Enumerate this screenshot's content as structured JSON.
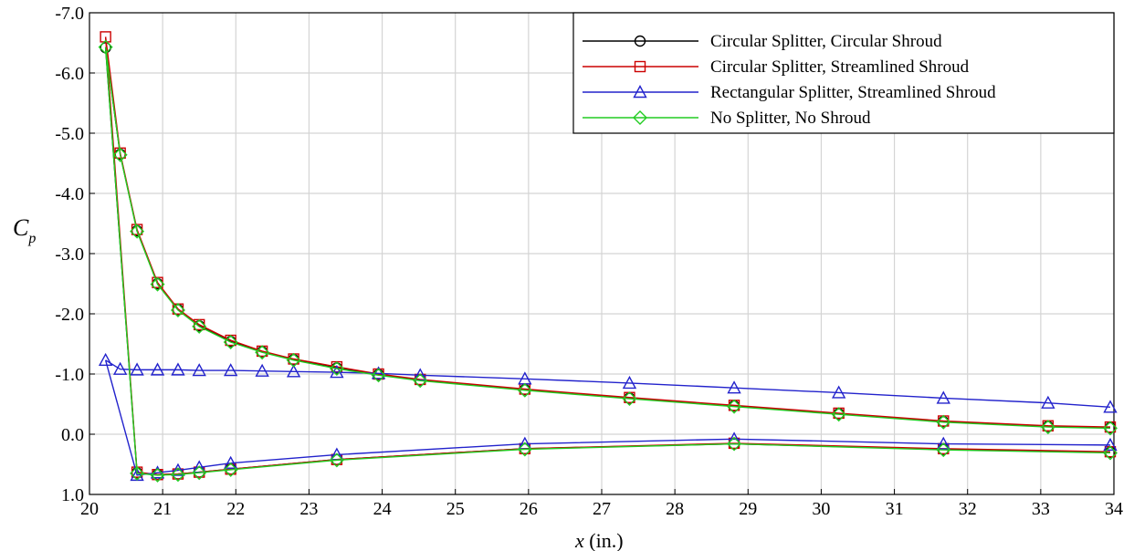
{
  "chart_data": {
    "type": "line",
    "title": "",
    "xlabel": {
      "var": "x",
      "unit": " (in.)"
    },
    "ylabel": {
      "main": "C",
      "sub": "p"
    },
    "xlim": [
      20,
      34
    ],
    "ylim": [
      1.0,
      -7.0
    ],
    "y_inverted": true,
    "grid": true,
    "legend_position": "top-right",
    "x_ticks": [
      20,
      21,
      22,
      23,
      24,
      25,
      26,
      27,
      28,
      29,
      30,
      31,
      32,
      33,
      34
    ],
    "x_tick_labels": [
      "20",
      "21",
      "22",
      "23",
      "24",
      "25",
      "26",
      "27",
      "28",
      "29",
      "30",
      "31",
      "32",
      "33",
      "34"
    ],
    "y_ticks": [
      -7,
      -6,
      -5,
      -4,
      -3,
      -2,
      -1,
      0,
      1
    ],
    "y_tick_labels": [
      "-7.0",
      "-6.0",
      "-5.0",
      "-4.0",
      "-3.0",
      "-2.0",
      "-1.0",
      "0.0",
      "1.0"
    ],
    "series": [
      {
        "name": "Circular Splitter, Circular Shroud",
        "color": "#000000",
        "marker": "circle",
        "upper": {
          "x": [
            20.22,
            20.42,
            20.65,
            20.93,
            21.21,
            21.5,
            21.93,
            22.36,
            22.79,
            23.38,
            23.95,
            24.52,
            25.95,
            27.38,
            28.81,
            30.24,
            31.67,
            33.1,
            33.95
          ],
          "y": [
            -6.42,
            -4.65,
            -3.38,
            -2.5,
            -2.07,
            -1.8,
            -1.54,
            -1.37,
            -1.24,
            -1.1,
            -0.99,
            -0.9,
            -0.74,
            -0.6,
            -0.47,
            -0.34,
            -0.21,
            -0.13,
            -0.11
          ]
        },
        "lower": {
          "x": [
            20.22,
            20.65,
            20.93,
            21.21,
            21.5,
            21.93,
            23.38,
            25.95,
            28.81,
            31.67,
            33.95
          ],
          "y": [
            -6.42,
            0.64,
            0.67,
            0.66,
            0.63,
            0.58,
            0.42,
            0.24,
            0.16,
            0.25,
            0.3
          ]
        }
      },
      {
        "name": "Circular Splitter, Streamlined Shroud",
        "color": "#cc0000",
        "marker": "square",
        "upper": {
          "x": [
            20.22,
            20.42,
            20.65,
            20.93,
            21.21,
            21.5,
            21.93,
            22.36,
            22.79,
            23.38,
            23.95,
            24.52,
            25.95,
            27.38,
            28.81,
            30.24,
            31.67,
            33.1,
            33.95
          ],
          "y": [
            -6.6,
            -4.67,
            -3.4,
            -2.52,
            -2.08,
            -1.82,
            -1.56,
            -1.38,
            -1.25,
            -1.12,
            -1.0,
            -0.91,
            -0.75,
            -0.61,
            -0.48,
            -0.35,
            -0.22,
            -0.14,
            -0.12
          ]
        },
        "lower": {
          "x": [
            20.22,
            20.65,
            20.93,
            21.21,
            21.5,
            21.93,
            23.38,
            25.95,
            28.81,
            31.67,
            33.95
          ],
          "y": [
            -6.6,
            0.63,
            0.67,
            0.66,
            0.63,
            0.58,
            0.42,
            0.24,
            0.15,
            0.24,
            0.29
          ]
        }
      },
      {
        "name": "Rectangular Splitter, Streamlined Shroud",
        "color": "#2222cc",
        "marker": "triangle",
        "upper": {
          "x": [
            20.22,
            20.42,
            20.65,
            20.93,
            21.21,
            21.5,
            21.93,
            22.36,
            22.79,
            23.38,
            23.95,
            24.52,
            25.95,
            27.38,
            28.81,
            30.24,
            31.67,
            33.1,
            33.95
          ],
          "y": [
            -1.23,
            -1.08,
            -1.07,
            -1.07,
            -1.07,
            -1.06,
            -1.06,
            -1.05,
            -1.04,
            -1.03,
            -1.01,
            -0.98,
            -0.92,
            -0.85,
            -0.77,
            -0.69,
            -0.6,
            -0.52,
            -0.45
          ]
        },
        "lower": {
          "x": [
            20.22,
            20.65,
            20.93,
            21.21,
            21.5,
            21.93,
            23.38,
            25.95,
            28.81,
            31.67,
            33.95
          ],
          "y": [
            -1.23,
            0.68,
            0.64,
            0.6,
            0.55,
            0.48,
            0.34,
            0.16,
            0.08,
            0.16,
            0.18
          ]
        }
      },
      {
        "name": "No Splitter, No Shroud",
        "color": "#22cc22",
        "marker": "diamond",
        "upper": {
          "x": [
            20.22,
            20.42,
            20.65,
            20.93,
            21.21,
            21.5,
            21.93,
            22.36,
            22.79,
            23.38,
            23.95,
            24.52,
            25.95,
            27.38,
            28.81,
            30.24,
            31.67,
            33.1,
            33.95
          ],
          "y": [
            -6.43,
            -4.64,
            -3.37,
            -2.49,
            -2.06,
            -1.79,
            -1.53,
            -1.36,
            -1.23,
            -1.09,
            -0.98,
            -0.89,
            -0.73,
            -0.59,
            -0.46,
            -0.33,
            -0.2,
            -0.12,
            -0.1
          ]
        },
        "lower": {
          "x": [
            20.22,
            20.65,
            20.93,
            21.21,
            21.5,
            21.93,
            23.38,
            25.95,
            28.81,
            31.67,
            33.95
          ],
          "y": [
            -6.43,
            0.65,
            0.68,
            0.67,
            0.64,
            0.59,
            0.43,
            0.25,
            0.16,
            0.26,
            0.31
          ]
        }
      }
    ]
  }
}
